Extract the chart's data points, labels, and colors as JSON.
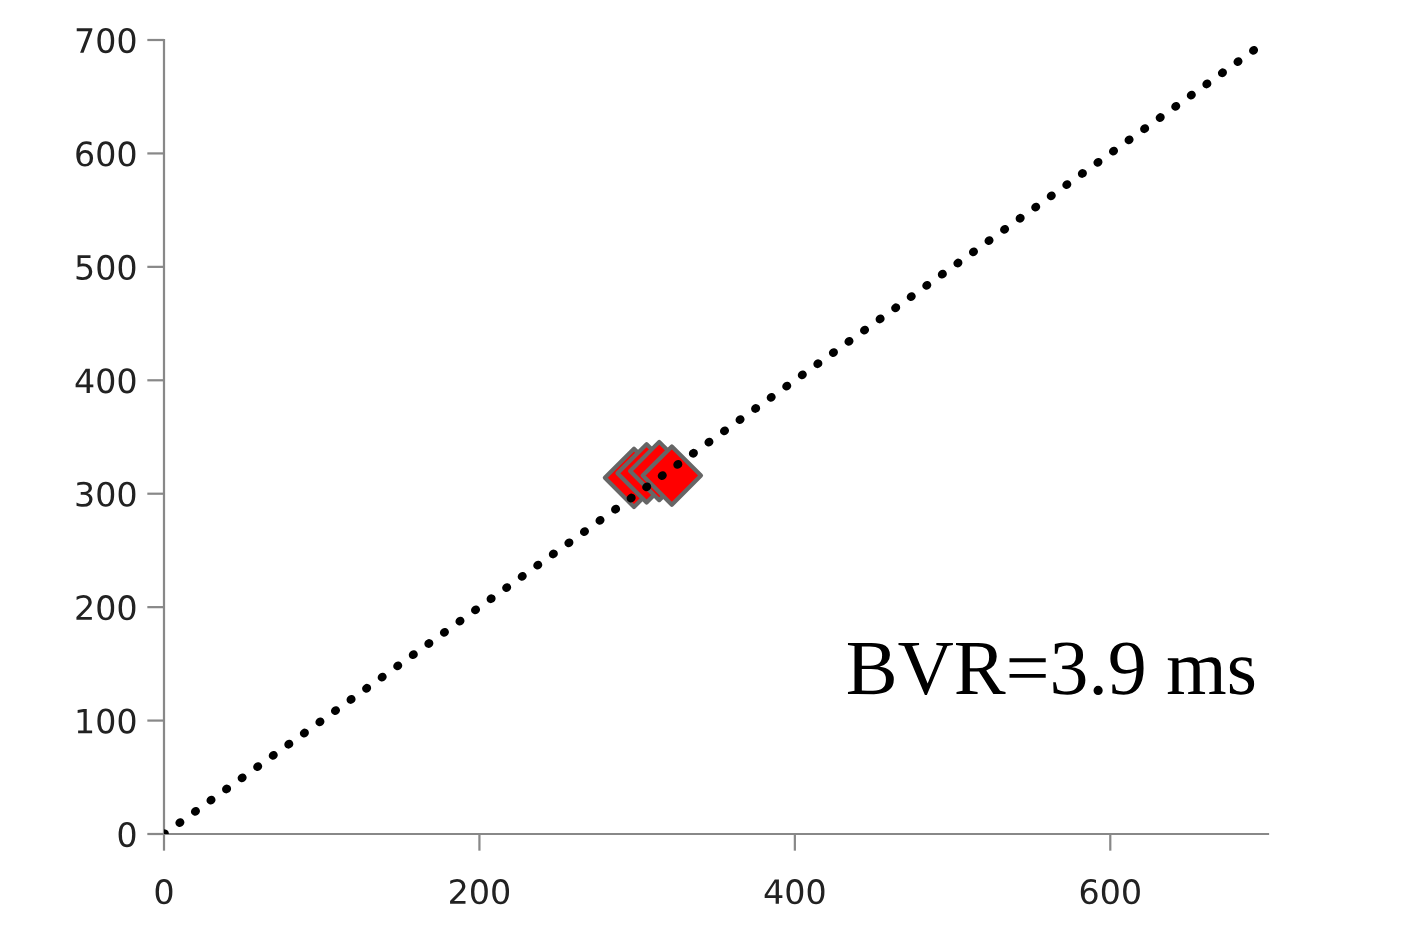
{
  "chart_data": {
    "type": "scatter",
    "xlim": [
      0,
      700
    ],
    "ylim": [
      0,
      700
    ],
    "xticks": [
      0,
      200,
      400,
      600
    ],
    "yticks": [
      0,
      100,
      200,
      300,
      400,
      500,
      600,
      700
    ],
    "grid": false,
    "legend": false,
    "series": [
      {
        "color": "#ff0000",
        "marker": "diamond",
        "x": [
          298,
          306,
          314,
          322
        ],
        "values": [
          314,
          318,
          320,
          316
        ]
      },
      {
        "type": "line",
        "color": "#000000",
        "line_style": "dotted",
        "marker": "none",
        "x": [
          0,
          700
        ],
        "values": [
          0,
          700
        ]
      }
    ],
    "annotations": [
      {
        "text": "BVR=3.9 ms"
      }
    ]
  }
}
